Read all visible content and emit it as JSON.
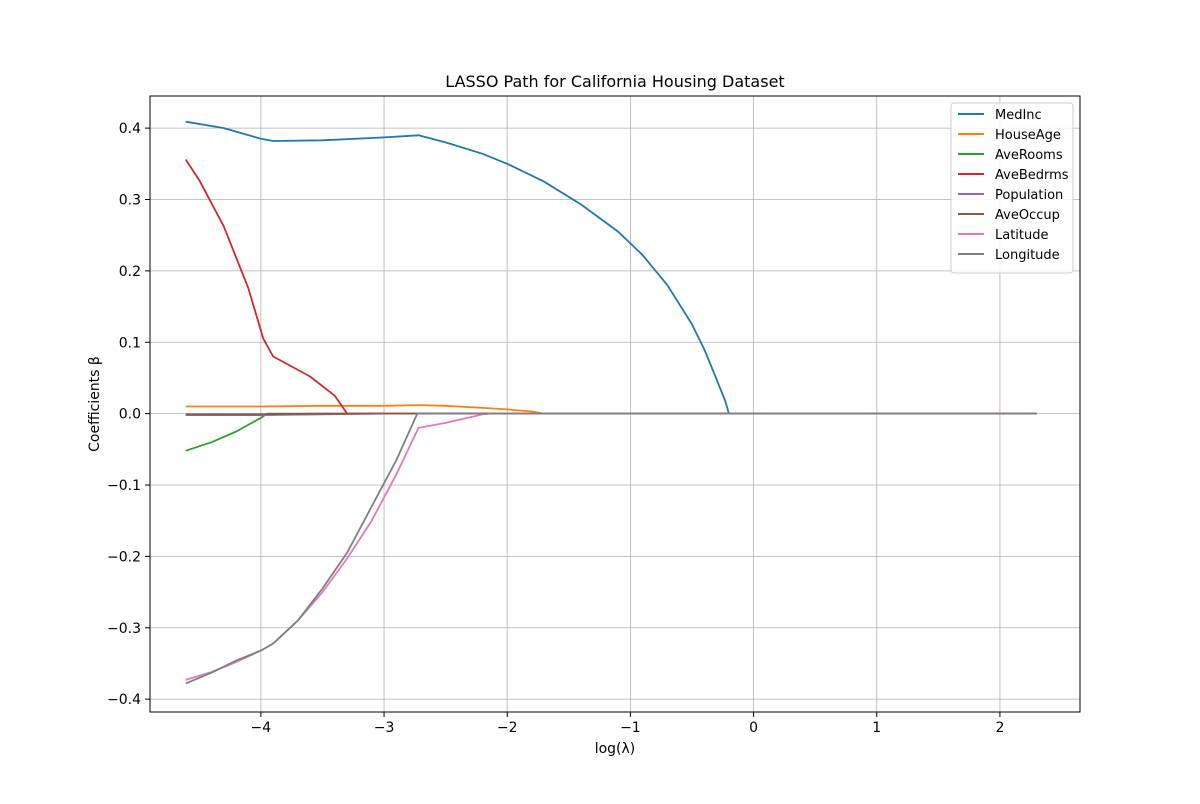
{
  "chart_data": {
    "type": "line",
    "title": "LASSO Path for California Housing Dataset",
    "xlabel": "log(λ)",
    "ylabel": "Coefficients β",
    "xlim": [
      -4.9,
      2.65
    ],
    "ylim": [
      -0.418,
      0.445
    ],
    "xticks": [
      -4,
      -3,
      -2,
      -1,
      0,
      1,
      2
    ],
    "xtick_labels": [
      "−4",
      "−3",
      "−2",
      "−1",
      "0",
      "1",
      "2"
    ],
    "yticks": [
      0.4,
      0.3,
      0.2,
      0.1,
      0.0,
      -0.1,
      -0.2,
      -0.3,
      -0.4
    ],
    "ytick_labels": [
      "0.4",
      "0.3",
      "0.2",
      "0.1",
      "0.0",
      "−0.1",
      "−0.2",
      "−0.3",
      "−0.4"
    ],
    "grid": true,
    "legend_position": "top-right",
    "series": [
      {
        "name": "MedInc",
        "color": "#1f77b4",
        "x": [
          -4.61,
          -4.3,
          -4.0,
          -3.9,
          -3.5,
          -3.0,
          -2.72,
          -2.5,
          -2.2,
          -2.0,
          -1.7,
          -1.4,
          -1.1,
          -0.9,
          -0.7,
          -0.5,
          -0.4,
          -0.3,
          -0.23,
          -0.2,
          0.5,
          1.5,
          2.3
        ],
        "y": [
          0.409,
          0.4,
          0.385,
          0.382,
          0.383,
          0.387,
          0.39,
          0.38,
          0.364,
          0.35,
          0.325,
          0.293,
          0.255,
          0.222,
          0.18,
          0.125,
          0.09,
          0.048,
          0.018,
          0.0,
          0.0,
          0.0,
          0.0
        ]
      },
      {
        "name": "HouseAge",
        "color": "#ff7f0e",
        "x": [
          -4.61,
          -4.0,
          -3.5,
          -3.0,
          -2.72,
          -2.5,
          -2.2,
          -2.0,
          -1.8,
          -1.7,
          0.0,
          2.3
        ],
        "y": [
          0.01,
          0.01,
          0.011,
          0.011,
          0.012,
          0.011,
          0.008,
          0.006,
          0.003,
          0.0,
          0.0,
          0.0
        ]
      },
      {
        "name": "AveRooms",
        "color": "#2ca02c",
        "x": [
          -4.61,
          -4.4,
          -4.2,
          -4.0,
          -3.95,
          -3.0,
          0.0,
          2.3
        ],
        "y": [
          -0.052,
          -0.04,
          -0.025,
          -0.006,
          0.0,
          0.0,
          0.0,
          0.0
        ]
      },
      {
        "name": "AveBedrms",
        "color": "#d62728",
        "x": [
          -4.61,
          -4.5,
          -4.3,
          -4.1,
          -3.98,
          -3.9,
          -3.6,
          -3.4,
          -3.3,
          0.0,
          2.3
        ],
        "y": [
          0.356,
          0.327,
          0.262,
          0.175,
          0.105,
          0.08,
          0.052,
          0.025,
          0.0,
          0.0,
          0.0
        ]
      },
      {
        "name": "Population",
        "color": "#9467bd",
        "x": [
          -4.61,
          -4.0,
          -3.5,
          -3.0,
          -2.72,
          -2.0,
          0.0,
          2.3
        ],
        "y": [
          -0.002,
          -0.002,
          -0.001,
          0.0,
          0.0,
          0.0,
          0.0,
          0.0
        ]
      },
      {
        "name": "AveOccup",
        "color": "#8c564b",
        "x": [
          -4.61,
          -4.0,
          -3.5,
          -3.0,
          -2.72,
          -2.0,
          0.0,
          2.3
        ],
        "y": [
          -0.001,
          -0.001,
          0.0,
          0.0,
          0.0,
          0.0,
          0.0,
          0.0
        ]
      },
      {
        "name": "Latitude",
        "color": "#e377c2",
        "x": [
          -4.61,
          -4.4,
          -4.2,
          -4.0,
          -3.9,
          -3.7,
          -3.5,
          -3.3,
          -3.1,
          -2.9,
          -2.72,
          -2.5,
          -2.3,
          -2.2,
          -2.15,
          0.0,
          2.3
        ],
        "y": [
          -0.373,
          -0.362,
          -0.348,
          -0.332,
          -0.322,
          -0.29,
          -0.25,
          -0.203,
          -0.15,
          -0.085,
          -0.02,
          -0.013,
          -0.005,
          -0.001,
          0.0,
          0.0,
          0.0
        ]
      },
      {
        "name": "Longitude",
        "color": "#7f7f7f",
        "x": [
          -4.61,
          -4.4,
          -4.2,
          -4.0,
          -3.9,
          -3.7,
          -3.5,
          -3.3,
          -3.1,
          -2.9,
          -2.73,
          -2.72,
          0.0,
          2.3
        ],
        "y": [
          -0.378,
          -0.363,
          -0.346,
          -0.332,
          -0.322,
          -0.29,
          -0.245,
          -0.195,
          -0.13,
          -0.065,
          0.0,
          0.0,
          0.0,
          0.0
        ]
      }
    ]
  }
}
